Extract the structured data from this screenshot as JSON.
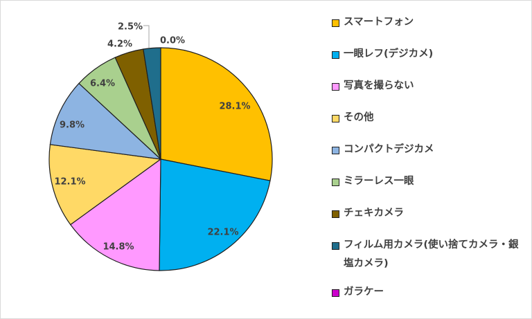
{
  "chart_data": {
    "type": "pie",
    "slices": [
      {
        "name": "スマートフォン",
        "value": 28.1,
        "label": "28.1%",
        "color": "#FFC000"
      },
      {
        "name": "一眼レフ(デジカメ)",
        "value": 22.1,
        "label": "22.1%",
        "color": "#00B0F0"
      },
      {
        "name": "写真を撮らない",
        "value": 14.8,
        "label": "14.8%",
        "color": "#FF99FF"
      },
      {
        "name": "その他",
        "value": 12.1,
        "label": "12.1%",
        "color": "#FFD966"
      },
      {
        "name": "コンパクトデジカメ",
        "value": 9.8,
        "label": "9.8%",
        "color": "#8DB4E2"
      },
      {
        "name": "ミラーレス一眼",
        "value": 6.4,
        "label": "6.4%",
        "color": "#A9D08E"
      },
      {
        "name": "チェキカメラ",
        "value": 4.2,
        "label": "4.2%",
        "color": "#7F6000"
      },
      {
        "name": "フィルム用カメラ(使い捨てカメラ・銀塩カメラ)",
        "value": 2.5,
        "label": "2.5%",
        "color": "#1F6E8C"
      },
      {
        "name": "ガラケー",
        "value": 0.0,
        "label": "0.0%",
        "color": "#CC00CC"
      }
    ],
    "legend_position": "right"
  }
}
